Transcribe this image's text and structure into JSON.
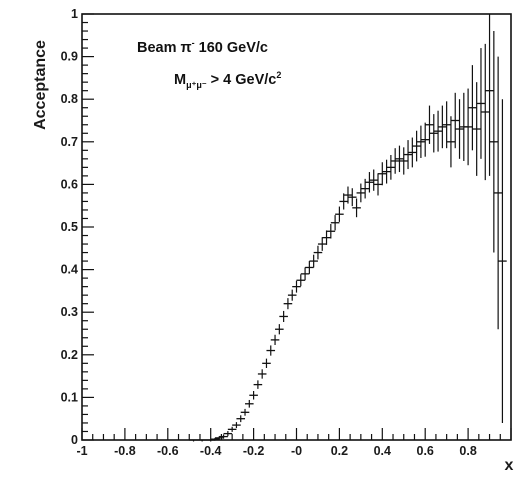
{
  "chart_data": {
    "type": "scatter",
    "title": "",
    "xlabel": "x",
    "ylabel": "Acceptance",
    "xlim": [
      -1,
      1
    ],
    "ylim": [
      0,
      1
    ],
    "x_ticks": [
      "-1",
      "-0.8",
      "-0.6",
      "-0.4",
      "-0.2",
      "-0",
      "0.2",
      "0.4",
      "0.6",
      "0.8"
    ],
    "y_ticks": [
      "0",
      "0.1",
      "0.2",
      "0.3",
      "0.4",
      "0.5",
      "0.6",
      "0.7",
      "0.8",
      "0.9",
      "1"
    ],
    "grid": false,
    "annotations": {
      "beam": {
        "prefix": "Beam ",
        "symbol": "π",
        "sup": "-",
        "suffix": " 160 GeV/c"
      },
      "mass": {
        "prefix": "M",
        "sub": "μ⁺μ⁻",
        "middle": " > 4 GeV/c",
        "sup": "2"
      }
    },
    "series": [
      {
        "x": [
          -0.48,
          -0.44,
          -0.4,
          -0.38,
          -0.36,
          -0.34,
          -0.32,
          -0.3,
          -0.28,
          -0.26,
          -0.24,
          -0.22,
          -0.2,
          -0.18,
          -0.16,
          -0.14,
          -0.12,
          -0.1,
          -0.08,
          -0.06,
          -0.04,
          -0.02,
          0.0,
          0.02,
          0.04,
          0.06,
          0.08,
          0.1,
          0.12,
          0.14,
          0.16,
          0.18,
          0.2,
          0.22,
          0.24,
          0.26,
          0.28,
          0.3,
          0.32,
          0.34,
          0.36,
          0.38,
          0.4,
          0.42,
          0.44,
          0.46,
          0.48,
          0.5,
          0.52,
          0.54,
          0.56,
          0.58,
          0.6,
          0.62,
          0.64,
          0.66,
          0.68,
          0.7,
          0.72,
          0.74,
          0.76,
          0.78,
          0.8,
          0.82,
          0.84,
          0.86,
          0.88,
          0.9,
          0.92,
          0.94,
          0.96
        ],
        "y": [
          0.0,
          0.0,
          0.0,
          0.002,
          0.005,
          0.008,
          0.015,
          0.025,
          0.035,
          0.05,
          0.065,
          0.085,
          0.105,
          0.13,
          0.155,
          0.18,
          0.21,
          0.235,
          0.26,
          0.29,
          0.32,
          0.34,
          0.36,
          0.375,
          0.39,
          0.405,
          0.42,
          0.44,
          0.46,
          0.475,
          0.49,
          0.51,
          0.53,
          0.56,
          0.575,
          0.57,
          0.545,
          0.58,
          0.59,
          0.605,
          0.61,
          0.6,
          0.625,
          0.63,
          0.64,
          0.655,
          0.66,
          0.655,
          0.67,
          0.675,
          0.69,
          0.7,
          0.705,
          0.74,
          0.72,
          0.725,
          0.735,
          0.74,
          0.7,
          0.75,
          0.73,
          0.735,
          0.735,
          0.78,
          0.73,
          0.79,
          0.77,
          0.82,
          0.7,
          0.58,
          0.42
        ],
        "err": [
          0,
          0,
          0,
          0.003,
          0.004,
          0.005,
          0.006,
          0.006,
          0.007,
          0.008,
          0.008,
          0.009,
          0.01,
          0.01,
          0.011,
          0.011,
          0.012,
          0.012,
          0.012,
          0.013,
          0.013,
          0.013,
          0.014,
          0.014,
          0.015,
          0.015,
          0.015,
          0.016,
          0.016,
          0.017,
          0.017,
          0.018,
          0.018,
          0.019,
          0.02,
          0.021,
          0.022,
          0.022,
          0.023,
          0.024,
          0.025,
          0.026,
          0.027,
          0.028,
          0.029,
          0.03,
          0.031,
          0.032,
          0.034,
          0.035,
          0.036,
          0.038,
          0.04,
          0.045,
          0.045,
          0.048,
          0.05,
          0.055,
          0.06,
          0.065,
          0.07,
          0.08,
          0.09,
          0.1,
          0.11,
          0.13,
          0.16,
          0.2,
          0.26,
          0.32,
          0.38
        ]
      }
    ]
  }
}
